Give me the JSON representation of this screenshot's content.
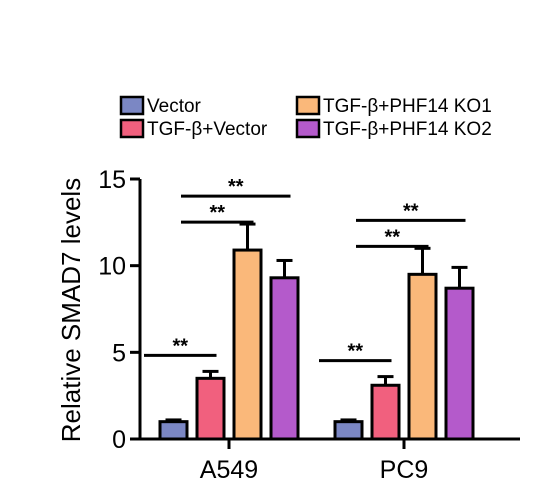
{
  "chart_data": {
    "type": "bar",
    "title": "",
    "xlabel": "",
    "ylabel": "Relative SMAD7 levels",
    "ylim": [
      0,
      15
    ],
    "yticks": [
      0,
      5,
      10,
      15
    ],
    "categories": [
      "A549",
      "PC9"
    ],
    "legend_position": "top",
    "series": [
      {
        "name": "Vector",
        "color": "#7b87c4",
        "values": [
          1.0,
          1.0
        ],
        "errors": [
          0.1,
          0.1
        ]
      },
      {
        "name": "TGF-β+Vector",
        "color": "#f1607e",
        "values": [
          3.5,
          3.1
        ],
        "errors": [
          0.4,
          0.5
        ]
      },
      {
        "name": "TGF-β+PHF14 KO1",
        "color": "#fab87a",
        "values": [
          10.9,
          9.5
        ],
        "errors": [
          1.5,
          1.5
        ]
      },
      {
        "name": "TGF-β+PHF14 KO2",
        "color": "#b45acb",
        "values": [
          9.3,
          8.7
        ],
        "errors": [
          1.0,
          1.2
        ]
      }
    ],
    "significance": [
      {
        "category": 0,
        "from": 1,
        "to": 2,
        "label": "**"
      },
      {
        "category": 0,
        "from": 1,
        "to": 3,
        "label": "**"
      },
      {
        "category": 0,
        "from": 0,
        "to": 1,
        "label": "**"
      },
      {
        "category": 1,
        "from": 1,
        "to": 2,
        "label": "**"
      },
      {
        "category": 1,
        "from": 1,
        "to": 3,
        "label": "**"
      },
      {
        "category": 1,
        "from": 0,
        "to": 1,
        "label": "**"
      }
    ]
  }
}
